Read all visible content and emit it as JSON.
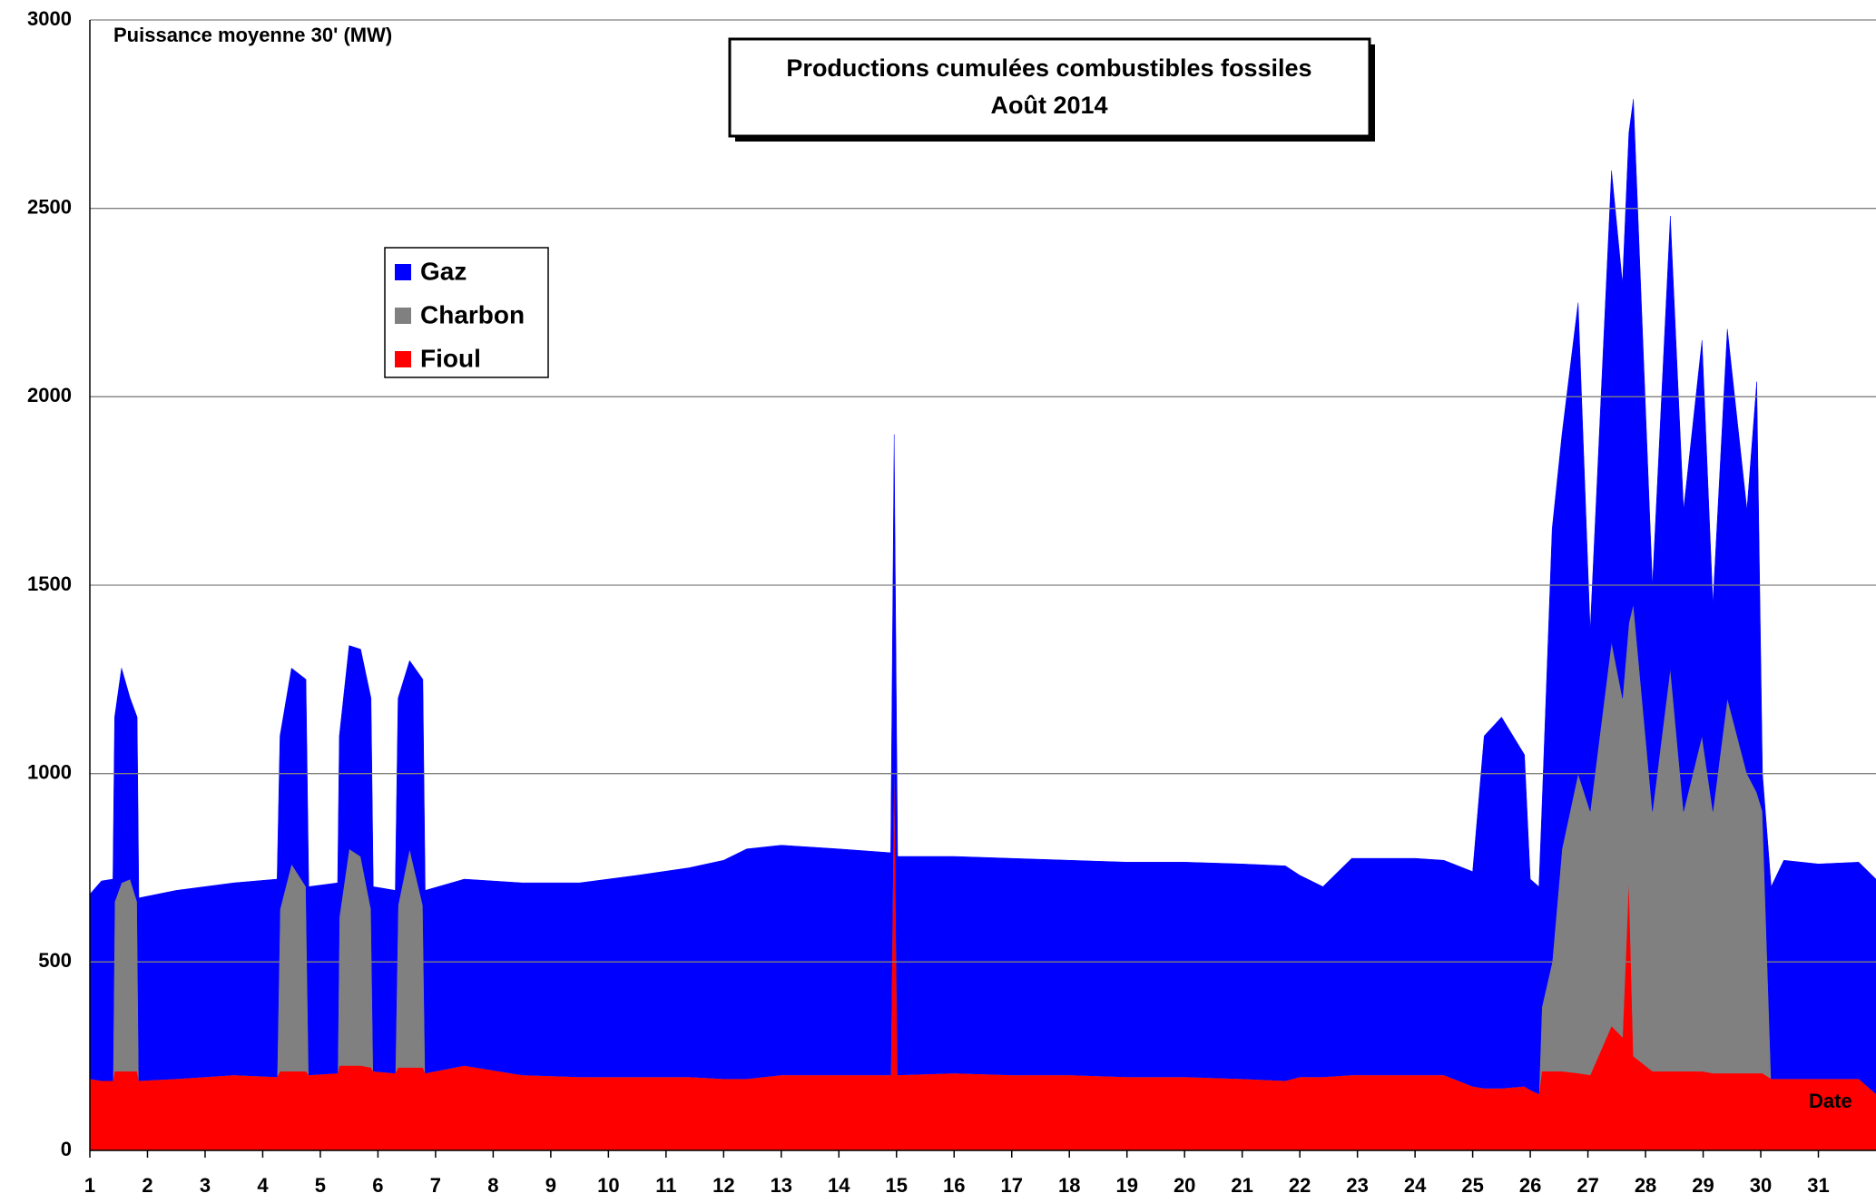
{
  "chart_data": {
    "type": "stacked-area",
    "title": "Productions cumulées combustibles fossiles",
    "subtitle": "Août 2014",
    "y_label": "Puissance moyenne 30' (MW)",
    "x_label": "Date",
    "x": [
      1.0,
      1.2,
      1.4,
      1.43,
      1.55,
      1.7,
      1.82,
      1.85,
      2.5,
      3.5,
      4.25,
      4.3,
      4.5,
      4.75,
      4.8,
      5.3,
      5.33,
      5.5,
      5.7,
      5.88,
      5.92,
      6.3,
      6.35,
      6.55,
      6.78,
      6.82,
      7.5,
      8.5,
      9.5,
      10.5,
      11.4,
      12.0,
      12.4,
      13.0,
      14.0,
      14.9,
      14.96,
      15.02,
      16.0,
      17.0,
      18.0,
      19.0,
      20.0,
      21.0,
      21.75,
      22.0,
      22.4,
      22.9,
      24.0,
      24.5,
      25.0,
      25.2,
      25.5,
      25.9,
      26.0,
      26.15,
      26.2,
      26.38,
      26.55,
      26.83,
      27.04,
      27.41,
      27.6,
      27.71,
      27.79,
      28.12,
      28.43,
      28.66,
      28.98,
      29.17,
      29.42,
      29.76,
      29.93,
      30.03,
      30.18,
      30.4,
      31.0,
      31.7,
      32.0
    ],
    "series": [
      {
        "name": "Gaz",
        "color": "#0000ff",
        "values": [
          490,
          530,
          535,
          490,
          570,
          480,
          490,
          485,
          500,
          510,
          525,
          460,
          520,
          550,
          500,
          505,
          480,
          540,
          550,
          560,
          490,
          485,
          550,
          500,
          600,
          485,
          495,
          510,
          515,
          535,
          555,
          580,
          610,
          610,
          600,
          590,
          850,
          580,
          575,
          575,
          570,
          570,
          570,
          570,
          570,
          535,
          505,
          575,
          575,
          570,
          570,
          935,
          985,
          880,
          560,
          550,
          520,
          1150,
          1100,
          1250,
          480,
          1250,
          1100,
          1300,
          1340,
          600,
          1200,
          800,
          1050,
          550,
          980,
          700,
          1090,
          100,
          510,
          580,
          570,
          575,
          570
        ]
      },
      {
        "name": "Charbon",
        "color": "#808080",
        "values": [
          0,
          0,
          0,
          450,
          500,
          510,
          450,
          0,
          0,
          0,
          0,
          430,
          550,
          490,
          0,
          0,
          395,
          575,
          555,
          420,
          0,
          0,
          430,
          580,
          430,
          0,
          0,
          0,
          0,
          0,
          0,
          0,
          0,
          0,
          0,
          0,
          0,
          0,
          0,
          0,
          0,
          0,
          0,
          0,
          0,
          0,
          0,
          0,
          0,
          0,
          0,
          0,
          0,
          0,
          0,
          0,
          170,
          290,
          590,
          795,
          700,
          1020,
          900,
          680,
          1200,
          690,
          1070,
          690,
          890,
          695,
          995,
          795,
          745,
          695,
          0,
          0,
          0,
          0,
          0
        ]
      },
      {
        "name": "Fioul",
        "color": "#ff0000",
        "values": [
          190,
          185,
          185,
          210,
          210,
          210,
          210,
          185,
          190,
          200,
          195,
          210,
          210,
          210,
          200,
          205,
          225,
          225,
          225,
          220,
          210,
          205,
          220,
          220,
          220,
          205,
          225,
          200,
          195,
          195,
          195,
          190,
          190,
          200,
          200,
          200,
          1050,
          200,
          205,
          200,
          200,
          195,
          195,
          190,
          185,
          195,
          195,
          200,
          200,
          200,
          170,
          165,
          165,
          170,
          160,
          150,
          210,
          210,
          210,
          205,
          200,
          330,
          300,
          720,
          250,
          210,
          210,
          210,
          210,
          205,
          205,
          205,
          205,
          205,
          190,
          190,
          190,
          190,
          150
        ]
      }
    ],
    "xlim": [
      1,
      32
    ],
    "xticks": [
      1,
      2,
      3,
      4,
      5,
      6,
      7,
      8,
      9,
      10,
      11,
      12,
      13,
      14,
      15,
      16,
      17,
      18,
      19,
      20,
      21,
      22,
      23,
      24,
      25,
      26,
      27,
      28,
      29,
      30,
      31
    ],
    "ylim": [
      0,
      3000
    ],
    "yticks": [
      0,
      500,
      1000,
      1500,
      2000,
      2500,
      3000
    ],
    "grid": true
  }
}
